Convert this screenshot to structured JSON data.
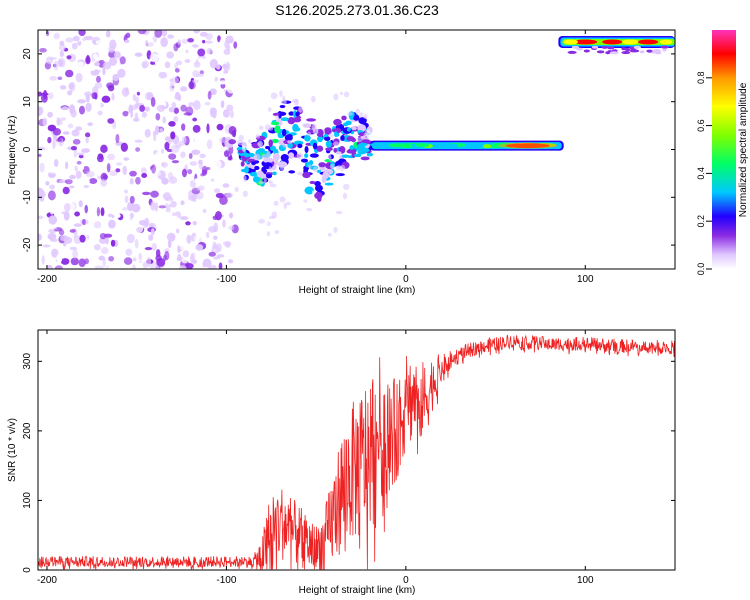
{
  "title": "S126.2025.273.01.36.C23",
  "chart_data": [
    {
      "type": "heatmap",
      "name": "spectrogram",
      "xlabel": "Height of straight line (km)",
      "ylabel": "Frequency (Hz)",
      "xlim": [
        -205,
        150
      ],
      "ylim": [
        -25,
        25
      ],
      "xticks": [
        -200,
        -100,
        0,
        100
      ],
      "yticks": [
        -20,
        -10,
        0,
        10,
        20
      ],
      "colorbar": {
        "label": "Normalized spectral amplitude",
        "range": [
          0,
          1
        ],
        "ticks": [
          "0.0",
          "0.2",
          "0.4",
          "0.6",
          "0.8"
        ],
        "tick_values": [
          0.0,
          0.2,
          0.4,
          0.6,
          0.8
        ],
        "colors": [
          "#ffffff",
          "#d9b8ff",
          "#8a2be2",
          "#2200ff",
          "#00c8ff",
          "#00ff88",
          "#80ff00",
          "#ffff00",
          "#ff9900",
          "#ff0000",
          "#ff33bb"
        ]
      },
      "features": [
        {
          "name": "noise",
          "x_range": [
            -205,
            -95
          ],
          "y_range": [
            -25,
            25
          ],
          "amplitude": 0.15
        },
        {
          "name": "dispersed-signal",
          "x_range": [
            -92,
            -20
          ],
          "y_center": 0,
          "amplitude": 0.35
        },
        {
          "name": "carrier-line",
          "x_range": [
            -20,
            88
          ],
          "y_center": 0.8,
          "amplitude": 0.6
        },
        {
          "name": "aliased-line",
          "x_range": [
            85,
            150
          ],
          "y_center": 22.5,
          "amplitude": 0.85
        }
      ]
    },
    {
      "type": "line",
      "name": "snr",
      "xlabel": "Height of straight line (km)",
      "ylabel": "SNR (10 * v/v)",
      "xlim": [
        -205,
        150
      ],
      "ylim": [
        0,
        345
      ],
      "xticks": [
        -200,
        -100,
        0,
        100
      ],
      "yticks": [
        0,
        100,
        200,
        300
      ],
      "color": "#ee2222",
      "series": [
        {
          "name": "SNR",
          "x": [
            -205,
            -180,
            -150,
            -120,
            -100,
            -85,
            -80,
            -75,
            -70,
            -60,
            -50,
            -45,
            -40,
            -35,
            -30,
            -25,
            -20,
            -15,
            -10,
            -5,
            0,
            5,
            10,
            15,
            20,
            25,
            30,
            40,
            50,
            60,
            80,
            100,
            120,
            150
          ],
          "y": [
            12,
            12,
            12,
            12,
            12,
            12,
            20,
            60,
            70,
            50,
            30,
            40,
            80,
            120,
            140,
            150,
            170,
            200,
            200,
            200,
            240,
            250,
            240,
            270,
            290,
            300,
            310,
            320,
            325,
            330,
            325,
            325,
            322,
            320
          ],
          "spread": [
            8,
            8,
            8,
            8,
            8,
            8,
            30,
            60,
            55,
            45,
            35,
            50,
            70,
            90,
            100,
            110,
            120,
            110,
            90,
            70,
            70,
            60,
            60,
            40,
            20,
            15,
            12,
            10,
            10,
            10,
            10,
            10,
            10,
            10
          ]
        }
      ]
    }
  ]
}
